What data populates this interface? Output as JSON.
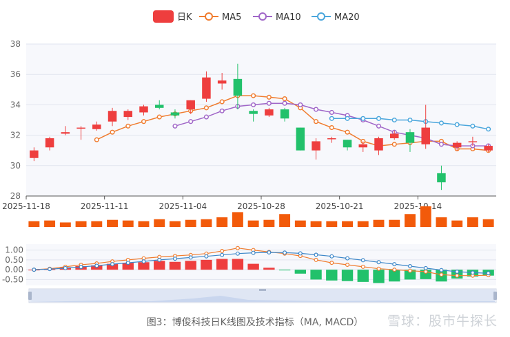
{
  "caption": "图3：博俊科技日K线图及技术指标（MA, MACD）",
  "watermark": "雪球：股市牛探长",
  "colors": {
    "up": "#ee3e3e",
    "down": "#22c16b",
    "ma5": "#f07c2f",
    "ma10": "#a066c8",
    "ma20": "#4aa6dc",
    "vol": "#f25a0a",
    "diff": "#f07c2f",
    "dea": "#3c86c8"
  },
  "chart_data": [
    {
      "type": "candlestick",
      "legend": [
        "日K",
        "MA5",
        "MA10",
        "MA20"
      ],
      "ylim": [
        28,
        38
      ],
      "yticks": [
        28,
        30,
        32,
        34,
        36,
        38
      ],
      "xtick_labels": [
        "2025-11-18",
        "2025-11-11",
        "2025-11-04",
        "2025-10-28",
        "2025-10-21",
        "2025-10-14"
      ],
      "candles": [
        {
          "o": 30.5,
          "c": 31.0,
          "h": 31.2,
          "l": 30.3
        },
        {
          "o": 31.2,
          "c": 31.8,
          "h": 31.9,
          "l": 31.0
        },
        {
          "o": 32.1,
          "c": 32.2,
          "h": 32.6,
          "l": 32.0
        },
        {
          "o": 32.5,
          "c": 32.5,
          "h": 32.6,
          "l": 31.7
        },
        {
          "o": 32.4,
          "c": 32.7,
          "h": 32.9,
          "l": 32.3
        },
        {
          "o": 32.9,
          "c": 33.6,
          "h": 33.8,
          "l": 32.6
        },
        {
          "o": 33.2,
          "c": 33.6,
          "h": 33.7,
          "l": 33.0
        },
        {
          "o": 33.5,
          "c": 33.9,
          "h": 34.0,
          "l": 33.3
        },
        {
          "o": 34.0,
          "c": 33.8,
          "h": 34.3,
          "l": 33.7
        },
        {
          "o": 33.5,
          "c": 33.3,
          "h": 33.7,
          "l": 33.1
        },
        {
          "o": 33.7,
          "c": 34.3,
          "h": 34.3,
          "l": 33.4
        },
        {
          "o": 34.4,
          "c": 35.8,
          "h": 36.2,
          "l": 34.2
        },
        {
          "o": 35.4,
          "c": 35.6,
          "h": 36.1,
          "l": 35.0
        },
        {
          "o": 35.7,
          "c": 34.6,
          "h": 36.7,
          "l": 33.7
        },
        {
          "o": 33.6,
          "c": 33.4,
          "h": 33.7,
          "l": 32.9
        },
        {
          "o": 33.3,
          "c": 33.7,
          "h": 33.8,
          "l": 33.2
        },
        {
          "o": 33.7,
          "c": 33.1,
          "h": 33.8,
          "l": 32.9
        },
        {
          "o": 32.5,
          "c": 31.0,
          "h": 32.5,
          "l": 31.0
        },
        {
          "o": 31.0,
          "c": 31.6,
          "h": 31.8,
          "l": 30.4
        },
        {
          "o": 31.8,
          "c": 31.8,
          "h": 31.9,
          "l": 31.5
        },
        {
          "o": 31.7,
          "c": 31.2,
          "h": 31.7,
          "l": 31.0
        },
        {
          "o": 31.2,
          "c": 31.4,
          "h": 31.6,
          "l": 30.9
        },
        {
          "o": 31.0,
          "c": 31.8,
          "h": 31.9,
          "l": 30.7
        },
        {
          "o": 31.8,
          "c": 32.1,
          "h": 32.3,
          "l": 31.7
        },
        {
          "o": 32.2,
          "c": 31.5,
          "h": 32.4,
          "l": 30.9
        },
        {
          "o": 31.4,
          "c": 32.5,
          "h": 34.0,
          "l": 31.1
        },
        {
          "o": 29.5,
          "c": 28.9,
          "h": 30.0,
          "l": 28.4
        },
        {
          "o": 31.2,
          "c": 31.5,
          "h": 31.6,
          "l": 31.0
        },
        {
          "o": 31.6,
          "c": 31.6,
          "h": 31.9,
          "l": 31.3
        },
        {
          "o": 31.0,
          "c": 31.3,
          "h": 31.4,
          "l": 30.9
        }
      ],
      "ma5": [
        null,
        null,
        null,
        null,
        31.7,
        32.2,
        32.6,
        32.9,
        33.2,
        33.4,
        33.6,
        33.8,
        34.2,
        34.6,
        34.6,
        34.5,
        34.4,
        33.8,
        32.9,
        32.5,
        32.2,
        31.6,
        31.3,
        31.4,
        31.5,
        31.6,
        31.6,
        31.1,
        31.1,
        31.0
      ],
      "ma10": [
        null,
        null,
        null,
        null,
        null,
        null,
        null,
        null,
        null,
        32.6,
        32.9,
        33.2,
        33.6,
        33.9,
        34.0,
        34.1,
        34.1,
        34.0,
        33.7,
        33.5,
        33.3,
        33.0,
        32.6,
        32.2,
        32.0,
        31.8,
        31.4,
        31.3,
        31.3,
        31.3
      ],
      "ma20": [
        null,
        null,
        null,
        null,
        null,
        null,
        null,
        null,
        null,
        null,
        null,
        null,
        null,
        null,
        null,
        null,
        null,
        null,
        null,
        33.1,
        33.1,
        33.1,
        33.1,
        33.0,
        33.0,
        32.9,
        32.8,
        32.7,
        32.6,
        32.4
      ]
    },
    {
      "type": "bar",
      "name": "volume",
      "values": [
        0.45,
        0.5,
        0.35,
        0.45,
        0.45,
        0.55,
        0.5,
        0.45,
        0.6,
        0.45,
        0.55,
        0.6,
        0.75,
        1.15,
        0.5,
        0.55,
        1.0,
        0.5,
        0.45,
        0.45,
        0.45,
        0.45,
        0.55,
        0.55,
        1.0,
        1.6,
        0.75,
        0.5,
        0.75,
        0.6
      ]
    },
    {
      "type": "macd",
      "yticks": [
        1.0,
        0.5,
        0.0,
        -0.5
      ],
      "ytick_labels": [
        "1.00",
        "0.50",
        "0.00",
        "-0.50"
      ],
      "hist": [
        0.0,
        0.02,
        0.12,
        0.18,
        0.22,
        0.3,
        0.35,
        0.38,
        0.45,
        0.4,
        0.45,
        0.5,
        0.55,
        0.55,
        0.3,
        0.1,
        -0.02,
        -0.2,
        -0.5,
        -0.55,
        -0.58,
        -0.62,
        -0.68,
        -0.6,
        -0.5,
        -0.48,
        -0.6,
        -0.45,
        -0.35,
        -0.3
      ],
      "diff": [
        0.0,
        0.05,
        0.15,
        0.25,
        0.32,
        0.42,
        0.5,
        0.58,
        0.65,
        0.7,
        0.75,
        0.82,
        0.95,
        1.1,
        1.0,
        0.9,
        0.82,
        0.7,
        0.5,
        0.35,
        0.25,
        0.15,
        0.05,
        0.0,
        -0.05,
        -0.1,
        -0.25,
        -0.3,
        -0.3,
        -0.28
      ],
      "dea": [
        0.0,
        0.03,
        0.08,
        0.14,
        0.2,
        0.28,
        0.35,
        0.42,
        0.5,
        0.56,
        0.62,
        0.68,
        0.75,
        0.82,
        0.86,
        0.88,
        0.87,
        0.83,
        0.76,
        0.68,
        0.58,
        0.48,
        0.38,
        0.28,
        0.18,
        0.08,
        -0.02,
        -0.1,
        -0.15,
        -0.18
      ]
    }
  ]
}
